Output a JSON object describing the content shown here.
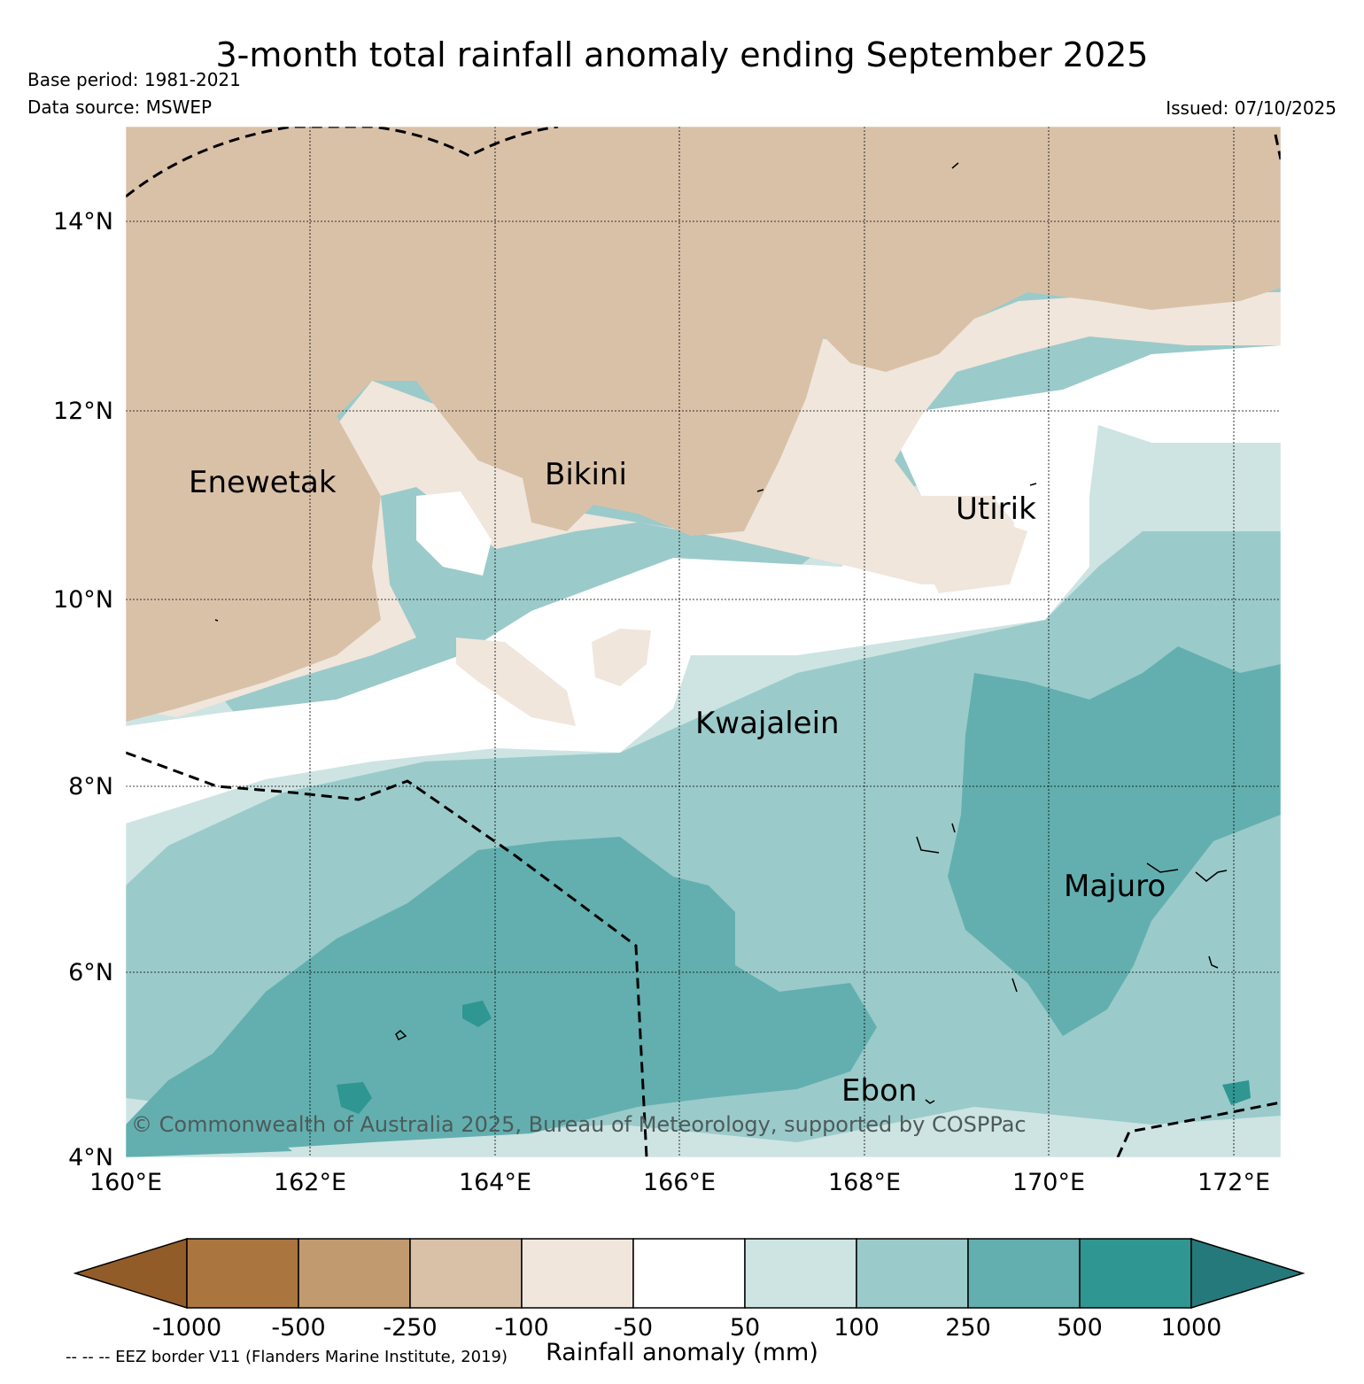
{
  "header": {
    "title": "3-month total rainfall anomaly ending September 2025",
    "base_period": "Base period: 1981-2021",
    "data_source": "Data source: MSWEP",
    "issued": "Issued: 07/10/2025"
  },
  "map": {
    "lon_range": [
      160,
      172.5
    ],
    "lat_range": [
      4,
      15
    ],
    "lon_ticks": [
      "160°E",
      "162°E",
      "164°E",
      "166°E",
      "168°E",
      "170°E",
      "172°E"
    ],
    "lat_ticks": [
      "4°N",
      "6°N",
      "8°N",
      "10°N",
      "12°N",
      "14°N"
    ],
    "places": {
      "enewetak": "Enewetak",
      "bikini": "Bikini",
      "utirik": "Utirik",
      "kwajalein": "Kwajalein",
      "majuro": "Majuro",
      "ebon": "Ebon"
    },
    "copyright": "© Commonwealth of Australia 2025, Bureau of Meteorology, supported by COSPPac",
    "eez_note": "-- -- -- EEZ border V11 (Flanders Marine Institute, 2019)"
  },
  "colorbar": {
    "title": "Rainfall anomaly (mm)",
    "ticks": [
      "-1000",
      "-500",
      "-250",
      "-100",
      "-50",
      "50",
      "100",
      "250",
      "500",
      "1000"
    ],
    "colors": {
      "extend_low": "#925c28",
      "c_m1000_m500": "#ab753f",
      "c_m500_m250": "#c29a70",
      "c_m250_m100": "#d9c1a8",
      "c_m100_m50": "#f0e6dc",
      "c_m50_50": "#ffffff",
      "c_50_100": "#cde4e3",
      "c_100_250": "#9bcaca",
      "c_250_500": "#63afaf",
      "c_500_1000": "#2f9692",
      "extend_high": "#26797a"
    }
  }
}
